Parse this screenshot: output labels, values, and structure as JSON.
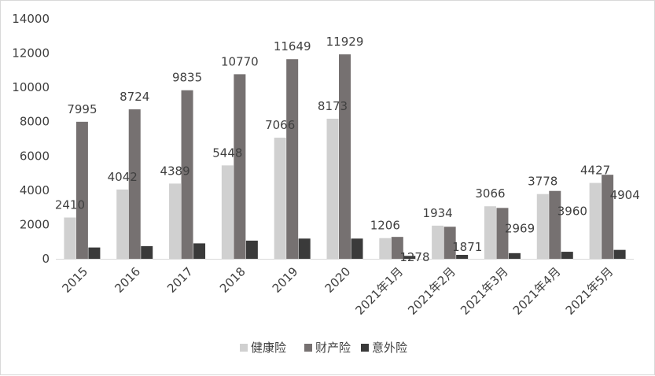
{
  "chart_data": {
    "type": "bar",
    "title": "",
    "xlabel": "",
    "ylabel": "",
    "ylim": [
      0,
      14000
    ],
    "yticks": [
      "0",
      "2000",
      "4000",
      "6000",
      "8000",
      "10000",
      "12000",
      "14000"
    ],
    "grid": false,
    "legend_position": "bottom",
    "categories": [
      "2015",
      "2016",
      "2017",
      "2018",
      "2019",
      "2020",
      "2021年1月",
      "2021年2月",
      "2021年3月",
      "2021年4月",
      "2021年5月"
    ],
    "series": [
      {
        "name": "健康险",
        "color": "#d0d0d0",
        "values": [
          2410,
          4042,
          4389,
          5448,
          7066,
          8173,
          1206,
          1934,
          3066,
          3778,
          4427
        ],
        "labels": [
          "2410",
          "4042",
          "4389",
          "5448",
          "7066",
          "8173",
          "1206",
          "1934",
          "3066",
          "3778",
          "4427"
        ]
      },
      {
        "name": "财产险",
        "color": "#767171",
        "values": [
          7995,
          8724,
          9835,
          10770,
          11649,
          11929,
          1278,
          1871,
          2969,
          3960,
          4904
        ],
        "labels": [
          "7995",
          "8724",
          "9835",
          "10770",
          "11649",
          "11929",
          "1278",
          "1871",
          "2969",
          "3960",
          "4904"
        ]
      },
      {
        "name": "意外险",
        "color": "#3a3a3a",
        "values": [
          660,
          740,
          900,
          1060,
          1180,
          1180,
          170,
          230,
          330,
          410,
          520
        ],
        "labels": []
      }
    ]
  }
}
